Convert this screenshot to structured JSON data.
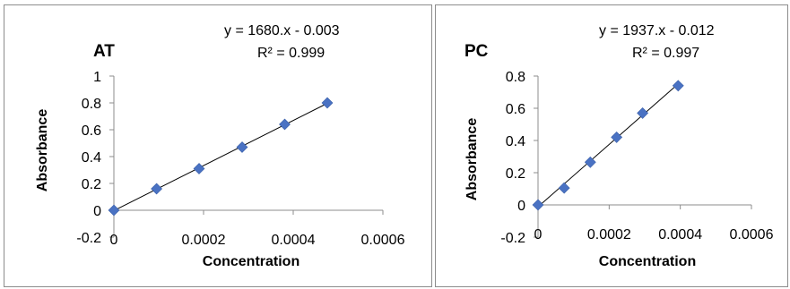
{
  "chart_data": [
    {
      "type": "scatter",
      "title": "AT",
      "xlabel": "Concentration",
      "ylabel": "Absorbance",
      "equation": "y = 1680.x - 0.003",
      "r2": "R² = 0.999",
      "xlim": [
        0,
        0.0006
      ],
      "ylim": [
        -0.2,
        1
      ],
      "x_ticks": [
        "0",
        "0.0002",
        "0.0004",
        "0.0006"
      ],
      "y_ticks": [
        "-0.2",
        "0",
        "0.2",
        "0.4",
        "0.6",
        "0.8",
        "1"
      ],
      "x_tick_values": [
        0,
        0.0002,
        0.0004,
        0.0006
      ],
      "y_tick_values": [
        -0.2,
        0,
        0.2,
        0.4,
        0.6,
        0.8,
        1
      ],
      "trendline": {
        "slope": 1680,
        "intercept": -0.003
      },
      "points": [
        {
          "x": 0,
          "y": 0
        },
        {
          "x": 9.52e-05,
          "y": 0.16
        },
        {
          "x": 0.00019,
          "y": 0.31
        },
        {
          "x": 0.000286,
          "y": 0.47
        },
        {
          "x": 0.000381,
          "y": 0.64
        },
        {
          "x": 0.000476,
          "y": 0.8
        }
      ],
      "marker_color": "#4a72c3",
      "trend_color": "#000000",
      "grid": false
    },
    {
      "type": "scatter",
      "title": "PC",
      "xlabel": "Concentration",
      "ylabel": "Absorbance",
      "equation": "y = 1937.x - 0.012",
      "r2": "R² = 0.997",
      "xlim": [
        0,
        0.0006
      ],
      "ylim": [
        -0.2,
        0.8
      ],
      "x_ticks": [
        "0",
        "0.0002",
        "0.0004",
        "0.0006"
      ],
      "y_ticks": [
        "-0.2",
        "0",
        "0.2",
        "0.4",
        "0.6",
        "0.8"
      ],
      "x_tick_values": [
        0,
        0.0002,
        0.0004,
        0.0006
      ],
      "y_tick_values": [
        -0.2,
        0,
        0.2,
        0.4,
        0.6,
        0.8
      ],
      "trendline": {
        "slope": 1937,
        "intercept": -0.012
      },
      "points": [
        {
          "x": 0,
          "y": 0
        },
        {
          "x": 7.35e-05,
          "y": 0.105
        },
        {
          "x": 0.000147,
          "y": 0.265
        },
        {
          "x": 0.000221,
          "y": 0.42
        },
        {
          "x": 0.000294,
          "y": 0.57
        },
        {
          "x": 0.000394,
          "y": 0.74
        }
      ],
      "marker_color": "#4a72c3",
      "trend_color": "#000000",
      "grid": false
    }
  ]
}
